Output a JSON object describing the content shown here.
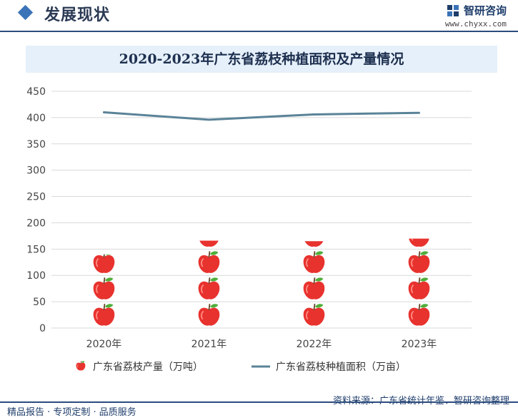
{
  "header": {
    "section_title": "发展现状",
    "brand_name": "智研咨询",
    "brand_url": "www.chyxx.com"
  },
  "chart_data": {
    "type": "bar",
    "title": "2020-2023年广东省荔枝种植面积及产量情况",
    "categories": [
      "2020年",
      "2021年",
      "2022年",
      "2023年"
    ],
    "ylim": [
      0,
      450
    ],
    "y_ticks": [
      0,
      50,
      100,
      150,
      200,
      250,
      300,
      350,
      400,
      450
    ],
    "grid": true,
    "legend_position": "bottom",
    "series": [
      {
        "name": "广东省荔枝产量（万吨）",
        "type": "pictorial-bar",
        "values": [
          140,
          166,
          165,
          170
        ],
        "color": "#e8322e"
      },
      {
        "name": "广东省荔枝种植面积（万亩）",
        "type": "line",
        "values": [
          410,
          396,
          406,
          409
        ],
        "color": "#5a8398"
      }
    ]
  },
  "footer": {
    "left_text": "精品报告 · 专项定制 · 品质服务",
    "source_text": "资料来源：广东省统计年鉴、智研咨询整理"
  }
}
